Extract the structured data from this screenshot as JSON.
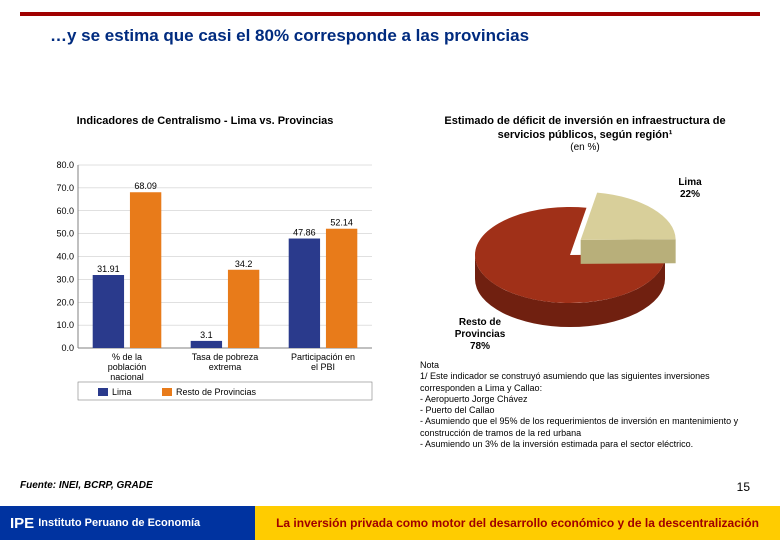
{
  "title_text": "…y se estima que casi el 80% corresponde a las provincias",
  "title_color": "#002b7f",
  "top_rule_color": "#a00000",
  "bar_chart": {
    "title": "Indicadores de Centralismo - Lima vs. Provincias",
    "type": "bar",
    "categories": [
      "% de la población nacional",
      "Tasa de pobreza extrema",
      "Participación en el PBI"
    ],
    "series": [
      {
        "name": "Lima",
        "color": "#2a3a8c",
        "values": [
          31.91,
          3.1,
          47.86
        ]
      },
      {
        "name": "Resto de Provincias",
        "color": "#e87b1a",
        "values": [
          68.09,
          34.2,
          52.14
        ]
      }
    ],
    "ylim": [
      0,
      80
    ],
    "ytick_step": 10,
    "axis_color": "#808080",
    "grid_color": "#c0c0c0",
    "label_fontsize": 9,
    "value_fontsize": 9,
    "bar_width": 0.32
  },
  "pie_chart": {
    "title": "Estimado de déficit de inversión en infraestructura de servicios públicos, según región¹",
    "subtitle": "(en %)",
    "type": "pie",
    "slices": [
      {
        "label": "Lima",
        "value": 22,
        "color": "#d8cf9a",
        "side_color": "#b8af7a"
      },
      {
        "label": "Resto de Provincias",
        "value": 78,
        "color": "#a03018",
        "side_color": "#702010"
      }
    ],
    "label_fontsize": 10,
    "background": "#ffffff"
  },
  "nota": {
    "heading": "Nota",
    "lines": [
      "1/ Este indicador se construyó asumiendo que las siguientes inversiones corresponden a Lima y Callao:",
      "- Aeropuerto Jorge Chávez",
      "- Puerto del Callao",
      "- Asumiendo que el 95% de los requerimientos de inversión en mantenimiento y construcción de tramos de la red urbana",
      "- Asumiendo un 3% de la inversión estimada para el sector eléctrico."
    ]
  },
  "fuente": "Fuente: INEI, BCRP, GRADE",
  "page_number": "15",
  "footer": {
    "logo_bg": "#0033a0",
    "logo_text_color": "#ffffff",
    "logo_prefix": "IPE",
    "logo_text": "Instituto Peruano de Economía",
    "tag_bg": "#ffcc00",
    "tag_text_color": "#a00000",
    "tag_text": "La inversión privada como motor del desarrollo económico y de la descentralización"
  }
}
